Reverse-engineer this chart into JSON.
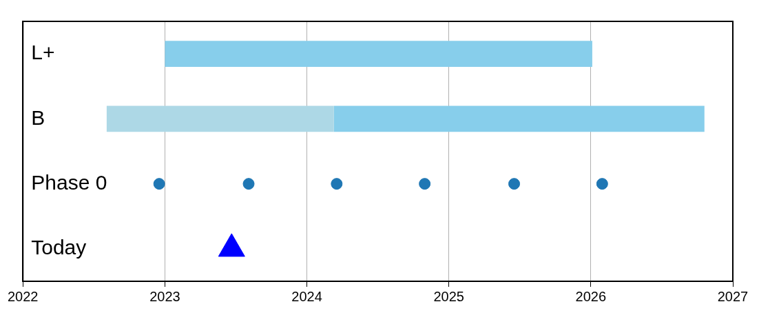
{
  "chart_data": {
    "type": "bar",
    "orientation": "horizontal",
    "categories": [
      "L+",
      "B",
      "Phase 0",
      "Today"
    ],
    "series": [
      {
        "color": "#add8e6",
        "values": [
          null,
          1.6,
          null,
          null
        ],
        "base": [
          null,
          2022.59,
          null,
          null
        ]
      },
      {
        "color": "#87ceeb",
        "values": [
          3.01,
          2.61,
          null,
          null
        ],
        "base": [
          2023.0,
          2024.19,
          null,
          null
        ]
      },
      {
        "type": "scatter",
        "color": "#1f77b4",
        "marker": "circle",
        "values": [
          null,
          null,
          2022.96,
          null
        ]
      },
      {
        "type": "scatter",
        "color": "#1f77b4",
        "marker": "circle",
        "values": [
          null,
          null,
          2023.59,
          null
        ]
      },
      {
        "type": "scatter",
        "color": "#1f77b4",
        "marker": "circle",
        "values": [
          null,
          null,
          2024.21,
          null
        ]
      },
      {
        "type": "scatter",
        "color": "#1f77b4",
        "marker": "circle",
        "values": [
          null,
          null,
          2024.83,
          null
        ]
      },
      {
        "type": "scatter",
        "color": "#1f77b4",
        "marker": "circle",
        "values": [
          null,
          null,
          2025.46,
          null
        ]
      },
      {
        "type": "scatter",
        "color": "#1f77b4",
        "marker": "circle",
        "values": [
          null,
          null,
          2026.08,
          null
        ]
      },
      {
        "type": "scatter",
        "color": "#0000ff",
        "marker": "triangle",
        "values": [
          null,
          null,
          null,
          2023.47
        ]
      }
    ],
    "xlim": [
      2022,
      2027
    ],
    "xticks": [
      2022,
      2023,
      2024,
      2025,
      2026,
      2027
    ],
    "grid": "x"
  }
}
